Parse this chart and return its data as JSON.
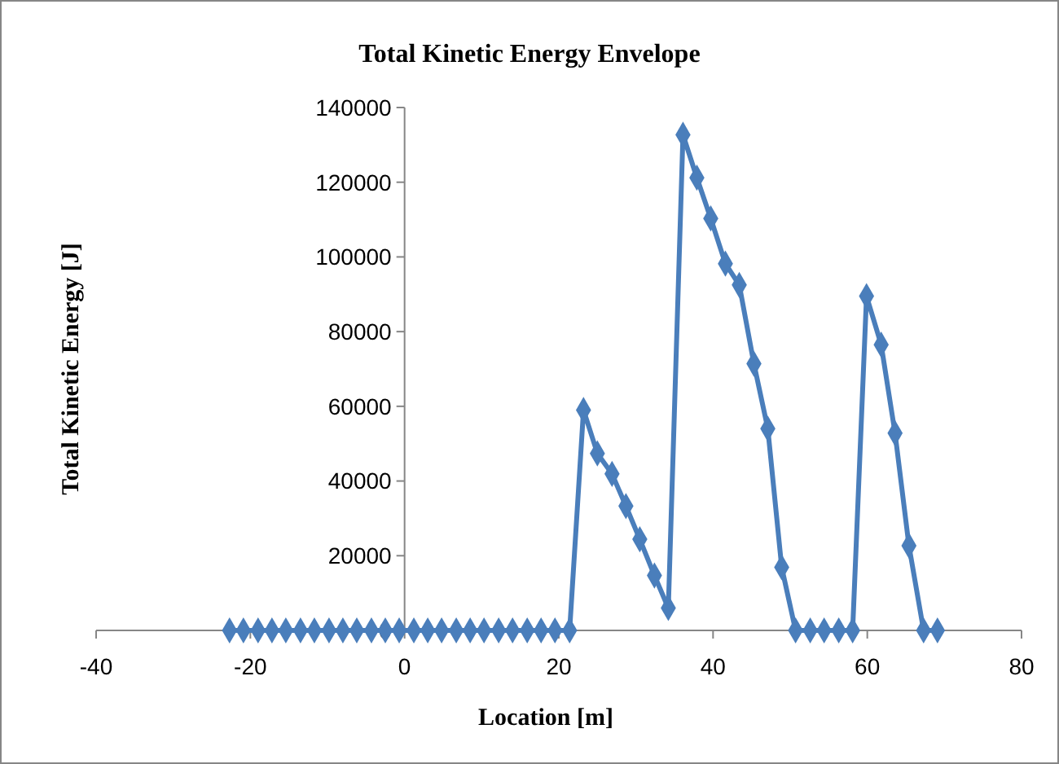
{
  "chart_data": {
    "type": "line",
    "title": "Total Kinetic Energy Envelope",
    "xlabel": "Location [m]",
    "ylabel": "Total Kinetic Energy [J]",
    "x": [
      -22.7,
      -20.9,
      -19.0,
      -17.2,
      -15.4,
      -13.5,
      -11.7,
      -9.8,
      -8.0,
      -6.2,
      -4.3,
      -2.5,
      -0.7,
      1.2,
      3.0,
      4.8,
      6.7,
      8.5,
      10.3,
      12.2,
      14.0,
      15.9,
      17.7,
      19.5,
      21.4,
      23.2,
      25.0,
      26.9,
      28.7,
      30.5,
      32.4,
      34.2,
      36.1,
      37.9,
      39.7,
      41.6,
      43.4,
      45.3,
      47.1,
      48.9,
      50.7,
      52.6,
      54.4,
      56.3,
      58.1,
      59.9,
      61.8,
      63.6,
      65.4,
      67.3,
      69.1
    ],
    "series": [
      {
        "color": "#4a7ebb",
        "values": [
          0,
          0,
          0,
          0,
          0,
          0,
          0,
          0,
          0,
          0,
          0,
          0,
          0,
          0,
          0,
          0,
          0,
          0,
          0,
          0,
          0,
          0,
          0,
          0,
          0,
          59000,
          47400,
          41900,
          33300,
          24400,
          14700,
          6000,
          132700,
          121200,
          110300,
          98200,
          92500,
          71400,
          54000,
          16900,
          0,
          0,
          0,
          0,
          0,
          89500,
          76500,
          52800,
          22700,
          0,
          0
        ]
      }
    ],
    "xlim": [
      -40,
      80
    ],
    "xticks": [
      -40,
      -20,
      0,
      20,
      40,
      60,
      80
    ],
    "ylim": [
      0,
      140000
    ],
    "yticks": [
      0,
      20000,
      40000,
      60000,
      80000,
      100000,
      120000,
      140000
    ],
    "marker": "diamond",
    "line_style": "solid"
  }
}
